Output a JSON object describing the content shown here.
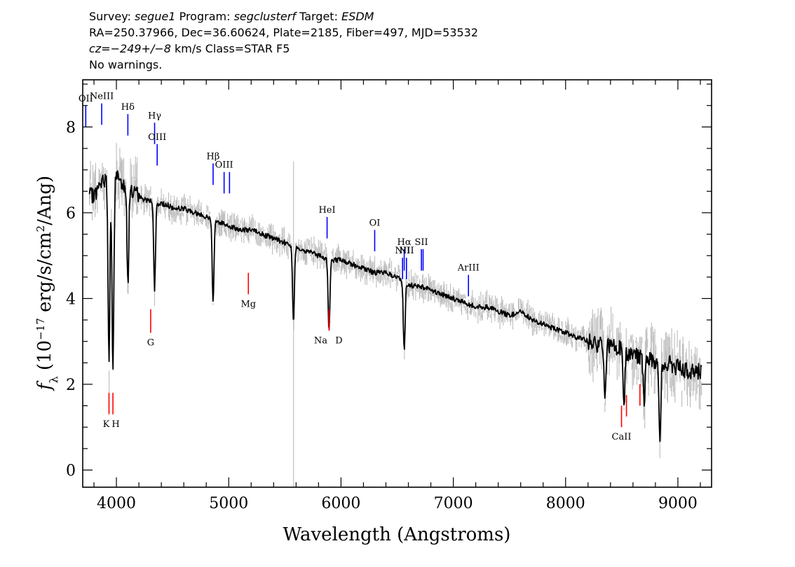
{
  "header": {
    "line1": {
      "survey_label": "Survey:",
      "survey": "segue1",
      "program_label": "Program:",
      "program": "segclusterf",
      "target_label": "Target:",
      "target": "ESDM"
    },
    "line2": "RA=250.37966, Dec=36.60624, Plate=2185, Fiber=497, MJD=53532",
    "line3": {
      "cz": "cz=−249+/−8",
      "rest": "km/s Class=STAR F5"
    },
    "line4": "No warnings."
  },
  "chart_data": {
    "type": "line",
    "xlabel": "Wavelength (Angstroms)",
    "ylabel": "f_λ (10^-17 erg/s/cm^2/Ang)",
    "xlim": [
      3700,
      9300
    ],
    "ylim": [
      -0.4,
      9.1
    ],
    "x_ticks": [
      4000,
      5000,
      6000,
      7000,
      8000,
      9000
    ],
    "y_ticks": [
      0,
      2,
      4,
      6,
      8
    ],
    "grid": false,
    "colors": {
      "spectrum": "#000000",
      "error": "#c0c0c0",
      "emission": "#0000ff",
      "absorption": "#ff0000"
    },
    "series": [
      {
        "x": [
          3800,
          3850,
          3900,
          3950,
          4000,
          4050,
          4100,
          4150,
          4200,
          4250,
          4300,
          4350,
          4400,
          4450,
          4500,
          4600,
          4700,
          4800,
          4900,
          5000,
          5100,
          5200,
          5300,
          5400,
          5500,
          5600,
          5700,
          5800,
          5900,
          6000,
          6100,
          6200,
          6300,
          6400,
          6500,
          6600,
          6700,
          6800,
          6900,
          7000,
          7100,
          7200,
          7300,
          7400,
          7500,
          7600,
          7700,
          7800,
          7900,
          8000,
          8100,
          8200,
          8300,
          8400,
          8500,
          8600,
          8700,
          8800,
          8900,
          9000,
          9100,
          9200
        ],
        "y": [
          6.4,
          6.6,
          6.8,
          6.7,
          6.9,
          6.7,
          6.6,
          6.5,
          6.4,
          6.3,
          6.3,
          6.2,
          6.2,
          6.2,
          6.1,
          6.1,
          6.0,
          5.9,
          5.8,
          5.7,
          5.6,
          5.6,
          5.5,
          5.4,
          5.3,
          5.2,
          5.1,
          5.0,
          4.9,
          4.9,
          4.8,
          4.7,
          4.6,
          4.6,
          4.5,
          4.3,
          4.3,
          4.2,
          4.1,
          4.0,
          3.9,
          3.8,
          3.8,
          3.7,
          3.6,
          3.7,
          3.5,
          3.4,
          3.3,
          3.2,
          3.1,
          3.0,
          2.9,
          2.9,
          2.8,
          2.7,
          2.6,
          2.5,
          2.5,
          2.4,
          2.3,
          2.3
        ]
      }
    ],
    "absorption_features": [
      {
        "x": 3934,
        "depth": 4.2
      },
      {
        "x": 3969,
        "depth": 4.6
      },
      {
        "x": 4102,
        "depth": 2.2
      },
      {
        "x": 4340,
        "depth": 2.0
      },
      {
        "x": 4861,
        "depth": 1.9
      },
      {
        "x": 5577,
        "depth": 1.8
      },
      {
        "x": 5893,
        "depth": 1.7
      },
      {
        "x": 6563,
        "depth": 1.6
      },
      {
        "x": 8350,
        "depth": 1.3
      },
      {
        "x": 8520,
        "depth": 1.4
      },
      {
        "x": 8700,
        "depth": 1.1
      },
      {
        "x": 8840,
        "depth": 1.8
      }
    ],
    "emission_lines": [
      {
        "label": "OII",
        "x": 3727,
        "y0": 8.0,
        "y1": 8.5
      },
      {
        "label": "NeIII",
        "x": 3869,
        "y0": 8.05,
        "y1": 8.55
      },
      {
        "label": "Hδ",
        "x": 4102,
        "y0": 7.8,
        "y1": 8.3
      },
      {
        "label": "Hγ",
        "x": 4340,
        "y0": 7.6,
        "y1": 8.1
      },
      {
        "label": "OIII",
        "x": 4363,
        "y0": 7.1,
        "y1": 7.6
      },
      {
        "label": "Hβ",
        "x": 4861,
        "y0": 6.65,
        "y1": 7.15
      },
      {
        "label": "OIII",
        "x": 4959,
        "y0": 6.45,
        "y1": 6.95
      },
      {
        "label": "",
        "x": 5007,
        "y0": 6.45,
        "y1": 6.95
      },
      {
        "label": "HeI",
        "x": 5876,
        "y0": 5.4,
        "y1": 5.9
      },
      {
        "label": "OI",
        "x": 6300,
        "y0": 5.1,
        "y1": 5.6
      },
      {
        "label": "NII",
        "x": 6548,
        "y0": 4.45,
        "y1": 4.95
      },
      {
        "label": "Hα",
        "x": 6563,
        "y0": 4.65,
        "y1": 5.15
      },
      {
        "label": "NII",
        "x": 6583,
        "y0": 4.45,
        "y1": 4.95
      },
      {
        "label": "SII",
        "x": 6716,
        "y0": 4.65,
        "y1": 5.15
      },
      {
        "label": "",
        "x": 6731,
        "y0": 4.65,
        "y1": 5.15
      },
      {
        "label": "ArIII",
        "x": 7135,
        "y0": 4.05,
        "y1": 4.55
      }
    ],
    "absorption_lines": [
      {
        "label": "K",
        "x": 3934,
        "y0": 1.3,
        "y1": 1.8
      },
      {
        "label": "H",
        "x": 3969,
        "y0": 1.3,
        "y1": 1.8
      },
      {
        "label": "G",
        "x": 4305,
        "y0": 3.2,
        "y1": 3.75
      },
      {
        "label": "Mg",
        "x": 5175,
        "y0": 4.1,
        "y1": 4.6
      },
      {
        "label": "Na",
        "x": 5894,
        "y0": 3.25,
        "y1": 3.75
      },
      {
        "label": "D",
        "x": 5894,
        "y0": 3.25,
        "y1": 3.75
      },
      {
        "label": "CaII",
        "x": 8498,
        "y0": 1.0,
        "y1": 1.5
      },
      {
        "label": "",
        "x": 8542,
        "y0": 1.25,
        "y1": 1.75
      },
      {
        "label": "",
        "x": 8662,
        "y0": 1.5,
        "y1": 2.0
      }
    ]
  }
}
